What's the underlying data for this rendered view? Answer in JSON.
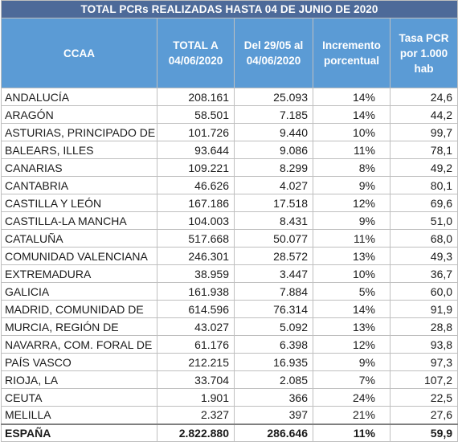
{
  "title": "TOTAL PCRs REALIZADAS HASTA 04 DE JUNIO DE 2020",
  "headers": {
    "ccaa": "CCAA",
    "total_1": "TOTAL A",
    "total_2": "04/06/2020",
    "del_1": "Del 29/05 al",
    "del_2": "04/06/2020",
    "inc_1": "Incremento",
    "inc_2": "porcentual",
    "tasa_1": "Tasa PCR",
    "tasa_2": "por 1.000",
    "tasa_3": "hab"
  },
  "rows": [
    {
      "ccaa": "ANDALUCÍA",
      "total": "208.161",
      "del": "25.093",
      "inc": "14%",
      "tasa": "24,6"
    },
    {
      "ccaa": "ARAGÓN",
      "total": "58.501",
      "del": "7.185",
      "inc": "14%",
      "tasa": "44,2"
    },
    {
      "ccaa": "ASTURIAS, PRINCIPADO DE",
      "total": "101.726",
      "del": "9.440",
      "inc": "10%",
      "tasa": "99,7"
    },
    {
      "ccaa": "BALEARS, ILLES",
      "total": "93.644",
      "del": "9.086",
      "inc": "11%",
      "tasa": "78,1"
    },
    {
      "ccaa": "CANARIAS",
      "total": "109.221",
      "del": "8.299",
      "inc": "8%",
      "tasa": "49,2"
    },
    {
      "ccaa": "CANTABRIA",
      "total": "46.626",
      "del": "4.027",
      "inc": "9%",
      "tasa": "80,1"
    },
    {
      "ccaa": "CASTILLA Y LEÓN",
      "total": "167.186",
      "del": "17.518",
      "inc": "12%",
      "tasa": "69,6"
    },
    {
      "ccaa": "CASTILLA-LA MANCHA",
      "total": "104.003",
      "del": "8.431",
      "inc": "9%",
      "tasa": "51,0"
    },
    {
      "ccaa": "CATALUÑA",
      "total": "517.668",
      "del": "50.077",
      "inc": "11%",
      "tasa": "68,0"
    },
    {
      "ccaa": "COMUNIDAD VALENCIANA",
      "total": "246.301",
      "del": "28.572",
      "inc": "13%",
      "tasa": "49,3"
    },
    {
      "ccaa": "EXTREMADURA",
      "total": "38.959",
      "del": "3.447",
      "inc": "10%",
      "tasa": "36,7"
    },
    {
      "ccaa": "GALICIA",
      "total": "161.938",
      "del": "7.884",
      "inc": "5%",
      "tasa": "60,0"
    },
    {
      "ccaa": "MADRID, COMUNIDAD DE",
      "total": "614.596",
      "del": "76.314",
      "inc": "14%",
      "tasa": "91,9"
    },
    {
      "ccaa": "MURCIA, REGIÓN DE",
      "total": "43.027",
      "del": "5.092",
      "inc": "13%",
      "tasa": "28,8"
    },
    {
      "ccaa": "NAVARRA, COM. FORAL DE",
      "total": "61.176",
      "del": "6.398",
      "inc": "12%",
      "tasa": "93,8"
    },
    {
      "ccaa": "PAÍS VASCO",
      "total": "212.215",
      "del": "16.935",
      "inc": "9%",
      "tasa": "97,3"
    },
    {
      "ccaa": "RIOJA, LA",
      "total": "33.704",
      "del": "2.085",
      "inc": "7%",
      "tasa": "107,2"
    },
    {
      "ccaa": "CEUTA",
      "total": "1.901",
      "del": "366",
      "inc": "24%",
      "tasa": "22,5"
    },
    {
      "ccaa": "MELILLA",
      "total": "2.327",
      "del": "397",
      "inc": "21%",
      "tasa": "27,6"
    }
  ],
  "total_row": {
    "ccaa": "ESPAÑA",
    "total": "2.822.880",
    "del": "286.646",
    "inc": "11%",
    "tasa": "59,9"
  },
  "colors": {
    "title_bg": "#4d6a99",
    "header_bg": "#5b9bd5",
    "border": "#bfbfbf"
  }
}
